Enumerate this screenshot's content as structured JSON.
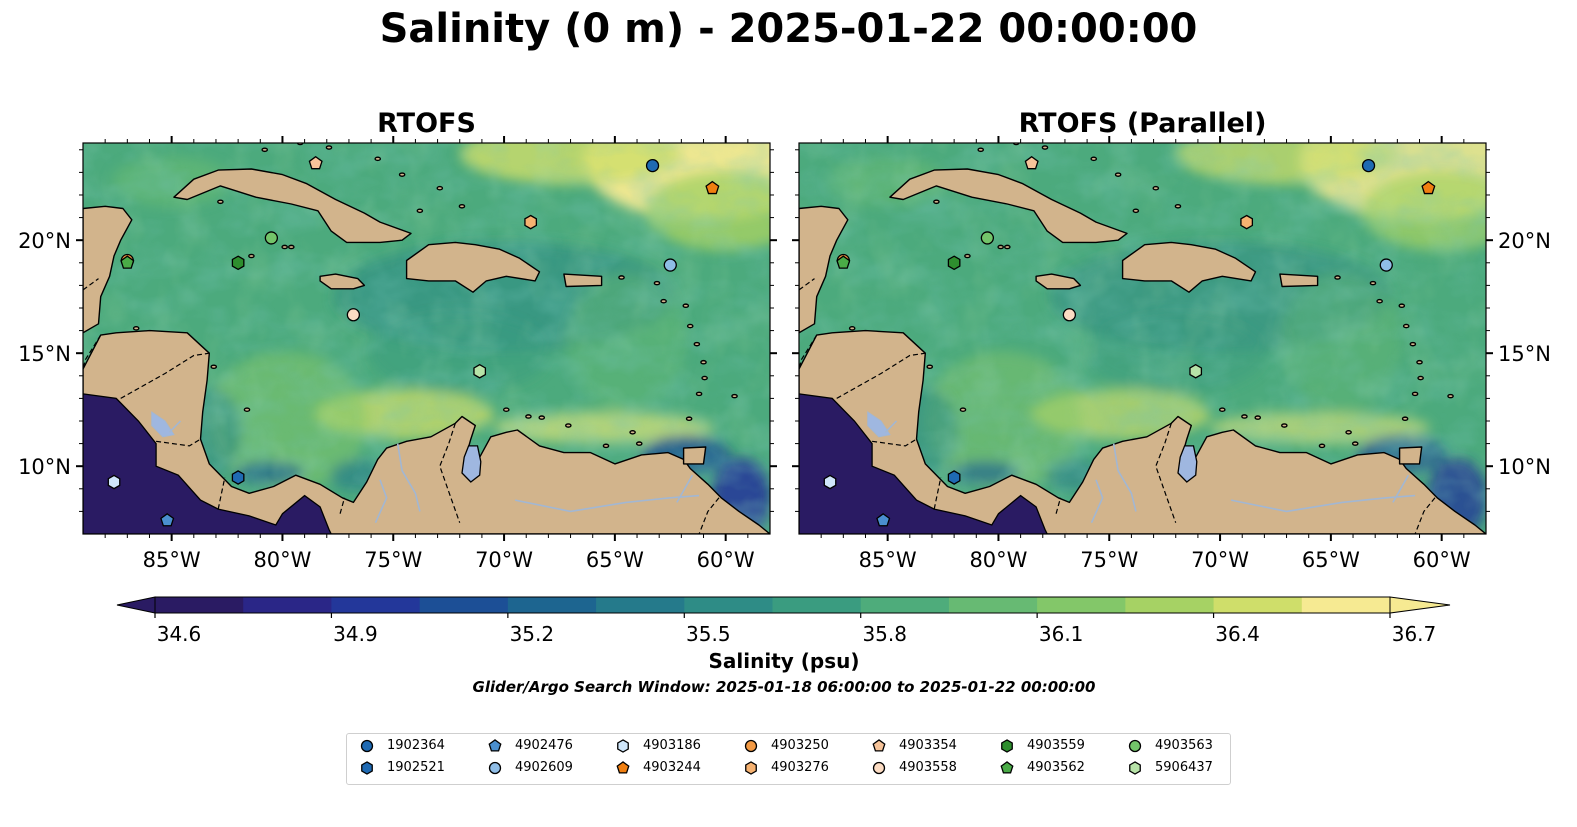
{
  "figure": {
    "title": "Salinity (0 m) - 2025-01-22 00:00:00",
    "panels": [
      {
        "title": "RTOFS"
      },
      {
        "title": "RTOFS (Parallel)"
      }
    ],
    "colorbar": {
      "ticks": [
        "34.6",
        "34.9",
        "35.2",
        "35.5",
        "35.8",
        "36.1",
        "36.4",
        "36.7"
      ],
      "label": "Salinity (psu)",
      "colors": [
        "#2a1b63",
        "#2a2687",
        "#23379a",
        "#1c4f96",
        "#1d6590",
        "#257a8b",
        "#2e8c86",
        "#3a9c80",
        "#4eac7b",
        "#67ba73",
        "#83c769",
        "#a6d264",
        "#cfde6a",
        "#f6ea92"
      ]
    },
    "search_window": "Glider/Argo Search Window: 2025-01-18 06:00:00 to 2025-01-22 00:00:00",
    "x_ticks": [
      "85°W",
      "80°W",
      "75°W",
      "70°W",
      "65°W",
      "60°W"
    ],
    "y_ticks": [
      "20°N",
      "15°N",
      "10°N"
    ],
    "map_extent": {
      "lon": [
        -89,
        -58
      ],
      "lat": [
        7,
        24.3
      ]
    },
    "colors": {
      "land": "#d2b48c",
      "lake": "#9fb7e0",
      "river": "#a2b7d3",
      "deep_ocean": "#2a1b63",
      "coast": "#000000"
    }
  },
  "legend": [
    {
      "id": "1902364",
      "marker": "circle",
      "color": "#1f6ab3"
    },
    {
      "id": "1902521",
      "marker": "hexagon",
      "color": "#1f6ab3"
    },
    {
      "id": "4902476",
      "marker": "pentagon",
      "color": "#4a8fcf"
    },
    {
      "id": "4902609",
      "marker": "circle",
      "color": "#8fbde6"
    },
    {
      "id": "4903186",
      "marker": "hexagon",
      "color": "#cfe6fa"
    },
    {
      "id": "4903244",
      "marker": "pentagon",
      "color": "#f07f11"
    },
    {
      "id": "4903250",
      "marker": "circle",
      "color": "#f39a44"
    },
    {
      "id": "4903276",
      "marker": "hexagon",
      "color": "#f6b271"
    },
    {
      "id": "4903354",
      "marker": "pentagon",
      "color": "#f7c49a"
    },
    {
      "id": "4903558",
      "marker": "circle",
      "color": "#fcdcc3"
    },
    {
      "id": "4903559",
      "marker": "hexagon",
      "color": "#2e8e2e"
    },
    {
      "id": "4903562",
      "marker": "pentagon",
      "color": "#4aab47"
    },
    {
      "id": "4903563",
      "marker": "circle",
      "color": "#73c46a"
    },
    {
      "id": "5906437",
      "marker": "hexagon",
      "color": "#b7e3a8"
    }
  ],
  "floats": [
    {
      "id": "1902364",
      "lon": -63.3,
      "lat": 23.3
    },
    {
      "id": "4903244",
      "lon": -60.6,
      "lat": 22.3
    },
    {
      "id": "4903354",
      "lon": -78.5,
      "lat": 23.4
    },
    {
      "id": "4903276",
      "lon": -68.8,
      "lat": 20.8
    },
    {
      "id": "4903563",
      "lon": -80.5,
      "lat": 20.1
    },
    {
      "id": "4903250",
      "lon": -87.0,
      "lat": 19.1
    },
    {
      "id": "4903562",
      "lon": -87.0,
      "lat": 19.0
    },
    {
      "id": "4903559",
      "lon": -82.0,
      "lat": 19.0
    },
    {
      "id": "4902609",
      "lon": -62.5,
      "lat": 18.9
    },
    {
      "id": "4903558",
      "lon": -76.8,
      "lat": 16.7
    },
    {
      "id": "5906437",
      "lon": -71.1,
      "lat": 14.2
    },
    {
      "id": "1902521",
      "lon": -82.0,
      "lat": 9.5
    },
    {
      "id": "4903186",
      "lon": -87.6,
      "lat": 9.3
    },
    {
      "id": "4902476",
      "lon": -85.2,
      "lat": 7.6
    }
  ]
}
